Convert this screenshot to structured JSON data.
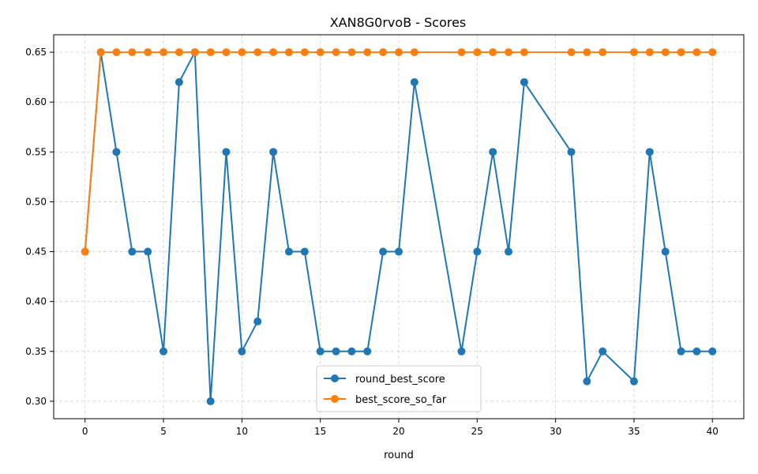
{
  "chart_data": {
    "type": "line",
    "title": "XAN8G0rvoB - Scores",
    "xlabel": "round",
    "ylabel": "",
    "xlim": [
      -2,
      42
    ],
    "ylim": [
      0.2825,
      0.6675
    ],
    "xticks": [
      0,
      5,
      10,
      15,
      20,
      25,
      30,
      35,
      40
    ],
    "yticks": [
      0.3,
      0.35,
      0.4,
      0.45,
      0.5,
      0.55,
      0.6,
      0.65
    ],
    "ytick_labels": [
      "0.30",
      "0.35",
      "0.40",
      "0.45",
      "0.50",
      "0.55",
      "0.60",
      "0.65"
    ],
    "grid": true,
    "legend_position": "bottom-center",
    "series": [
      {
        "name": "round_best_score",
        "color": "#1f77b4",
        "x": [
          0,
          1,
          2,
          3,
          4,
          5,
          6,
          7,
          8,
          9,
          10,
          11,
          12,
          13,
          14,
          15,
          16,
          17,
          18,
          19,
          20,
          21,
          24,
          25,
          26,
          27,
          28,
          31,
          32,
          33,
          35,
          36,
          37,
          38,
          39,
          40
        ],
        "y": [
          0.45,
          0.65,
          0.55,
          0.45,
          0.45,
          0.35,
          0.62,
          0.65,
          0.3,
          0.55,
          0.35,
          0.38,
          0.55,
          0.45,
          0.45,
          0.35,
          0.35,
          0.35,
          0.35,
          0.45,
          0.45,
          0.62,
          0.35,
          0.45,
          0.55,
          0.45,
          0.62,
          0.55,
          0.32,
          0.35,
          0.32,
          0.55,
          0.45,
          0.35,
          0.35,
          0.35
        ]
      },
      {
        "name": "best_score_so_far",
        "color": "#ff7f0e",
        "x": [
          0,
          1,
          2,
          3,
          4,
          5,
          6,
          7,
          8,
          9,
          10,
          11,
          12,
          13,
          14,
          15,
          16,
          17,
          18,
          19,
          20,
          21,
          24,
          25,
          26,
          27,
          28,
          31,
          32,
          33,
          35,
          36,
          37,
          38,
          39,
          40
        ],
        "y": [
          0.45,
          0.65,
          0.65,
          0.65,
          0.65,
          0.65,
          0.65,
          0.65,
          0.65,
          0.65,
          0.65,
          0.65,
          0.65,
          0.65,
          0.65,
          0.65,
          0.65,
          0.65,
          0.65,
          0.65,
          0.65,
          0.65,
          0.65,
          0.65,
          0.65,
          0.65,
          0.65,
          0.65,
          0.65,
          0.65,
          0.65,
          0.65,
          0.65,
          0.65,
          0.65,
          0.65
        ]
      }
    ]
  }
}
